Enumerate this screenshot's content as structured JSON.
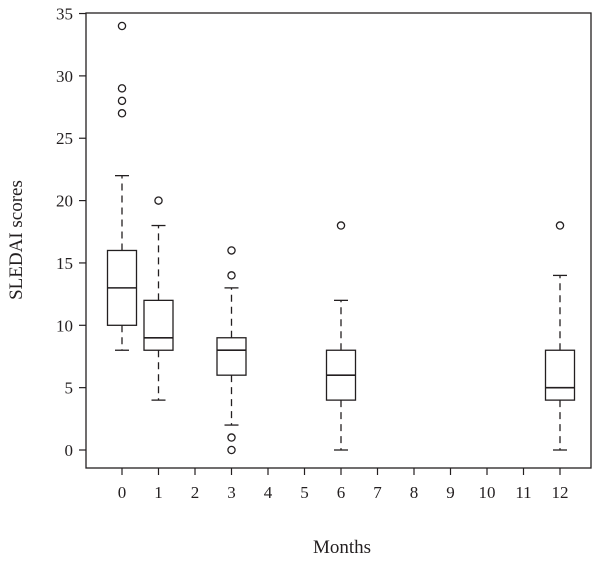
{
  "chart_data": {
    "type": "box",
    "xlabel": "Months",
    "ylabel": "SLEDAI scores",
    "ylim": [
      0,
      35
    ],
    "y_ticks": [
      0,
      5,
      10,
      15,
      20,
      25,
      30,
      35
    ],
    "x_ticks": [
      0,
      1,
      2,
      3,
      4,
      5,
      6,
      7,
      8,
      9,
      10,
      11,
      12
    ],
    "grid": false,
    "boxes": [
      {
        "x": 0,
        "whisker_low": 8,
        "q1": 10,
        "median": 13,
        "q3": 16,
        "whisker_high": 22,
        "outliers": [
          27,
          28,
          29,
          34
        ]
      },
      {
        "x": 1,
        "whisker_low": 4,
        "q1": 8,
        "median": 9,
        "q3": 12,
        "whisker_high": 18,
        "outliers": [
          20
        ]
      },
      {
        "x": 3,
        "whisker_low": 2,
        "q1": 6,
        "median": 8,
        "q3": 9,
        "whisker_high": 13,
        "outliers": [
          0,
          1,
          14,
          16
        ]
      },
      {
        "x": 6,
        "whisker_low": 0,
        "q1": 4,
        "median": 6,
        "q3": 8,
        "whisker_high": 12,
        "outliers": [
          18
        ]
      },
      {
        "x": 12,
        "whisker_low": 0,
        "q1": 4,
        "median": 5,
        "q3": 8,
        "whisker_high": 14,
        "outliers": [
          18
        ]
      }
    ],
    "colors": {
      "line": "#231f20",
      "background": "#ffffff"
    }
  }
}
